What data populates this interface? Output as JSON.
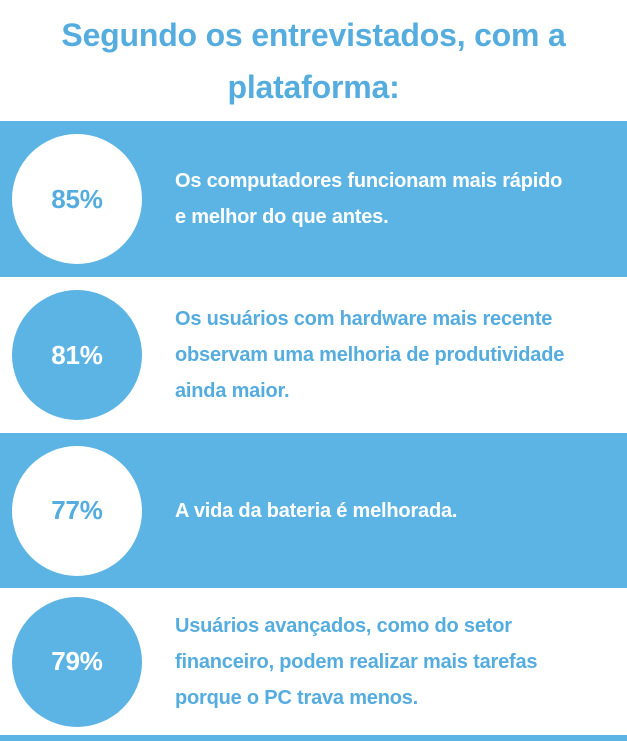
{
  "title": {
    "text": "Segundo os entrevistados, com a plataforma:",
    "lines": [
      "Segundo os entrevistados, com a",
      "plataforma:"
    ]
  },
  "colors": {
    "row_blue": "#5CB4E4",
    "text_blue": "#55ACDF",
    "white": "#FFFFFF"
  },
  "stats": [
    {
      "percent": "85%",
      "text": "Os computadores funcionam mais rápido e melhor do que antes.",
      "lines": [
        "Os computadores funcionam mais rápido",
        "e melhor do que antes."
      ],
      "row_style": "blue"
    },
    {
      "percent": "81%",
      "text": "Os usuários com hardware mais recente observam uma melhoria de produtividade ainda maior.",
      "lines": [
        "Os usuários com hardware mais recente",
        "observam uma melhoria de produtividade",
        "ainda maior."
      ],
      "row_style": "white"
    },
    {
      "percent": "77%",
      "text": "A vida da bateria é melhorada.",
      "lines": [
        "A vida da bateria é melhorada."
      ],
      "row_style": "blue"
    },
    {
      "percent": "79%",
      "text": "Usuários avançados, como do setor financeiro, podem realizar mais tarefas porque o PC trava menos.",
      "lines": [
        "Usuários avançados, como do setor",
        "financeiro, podem realizar mais tarefas",
        "porque o PC trava menos."
      ],
      "row_style": "white"
    }
  ],
  "chart_data": {
    "type": "table",
    "title": "Segundo os entrevistados, com a plataforma:",
    "categories": [
      "Os computadores funcionam mais rápido e melhor do que antes.",
      "Os usuários com hardware mais recente observam uma melhoria de produtividade ainda maior.",
      "A vida da bateria é melhorada.",
      "Usuários avançados, como do setor financeiro, podem realizar mais tarefas porque o PC trava menos."
    ],
    "values": [
      85,
      81,
      77,
      79
    ],
    "unit": "%",
    "legend": "none",
    "layout": "stat-rows-infographic"
  }
}
